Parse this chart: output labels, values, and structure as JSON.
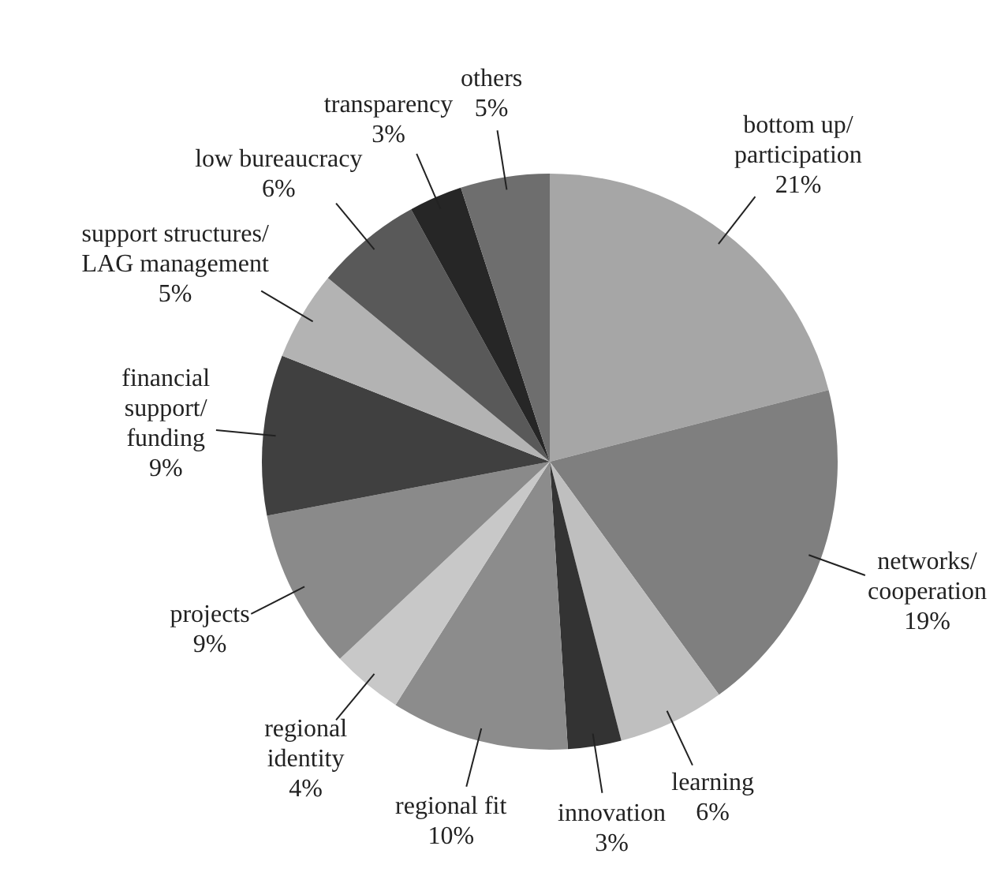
{
  "chart_data": {
    "type": "pie",
    "categories": [
      "bottom up/\nparticipation",
      "networks/\ncooperation",
      "learning",
      "innovation",
      "regional fit",
      "regional\nidentity",
      "projects",
      "financial\nsupport/\nfunding",
      "support structures/\nLAG management",
      "low bureaucracy",
      "transparency",
      "others"
    ],
    "values": [
      21,
      19,
      6,
      3,
      10,
      4,
      9,
      9,
      5,
      6,
      3,
      5
    ],
    "value_labels": [
      "21%",
      "19%",
      "6%",
      "3%",
      "10%",
      "4%",
      "9%",
      "9%",
      "5%",
      "6%",
      "3%",
      "5%"
    ],
    "colors": [
      "#a6a6a6",
      "#7f7f7f",
      "#bfbfbf",
      "#333333",
      "#8c8c8c",
      "#c8c8c8",
      "#8a8a8a",
      "#404040",
      "#b3b3b3",
      "#595959",
      "#262626",
      "#6e6e6e"
    ],
    "legend": false
  }
}
